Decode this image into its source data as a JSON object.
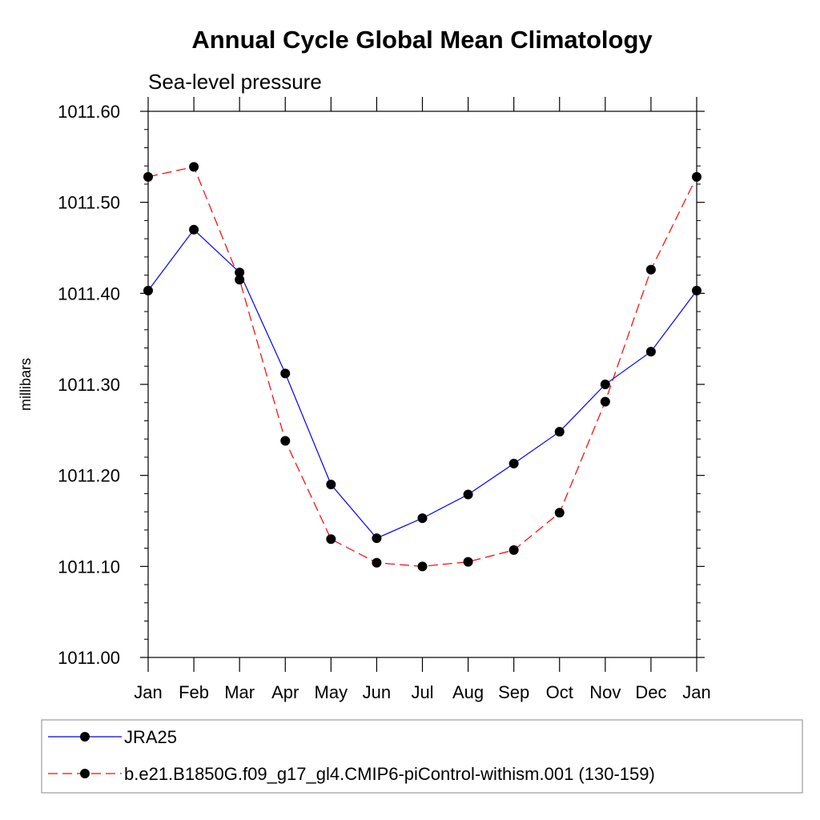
{
  "chart_data": {
    "type": "line",
    "title": "Annual Cycle Global Mean Climatology",
    "subtitle": "Sea-level pressure",
    "xlabel": "",
    "ylabel": "millibars",
    "categories": [
      "Jan",
      "Feb",
      "Mar",
      "Apr",
      "May",
      "Jun",
      "Jul",
      "Aug",
      "Sep",
      "Oct",
      "Nov",
      "Dec",
      "Jan"
    ],
    "ylim": [
      1011.0,
      1011.6
    ],
    "yticks": [
      1011.0,
      1011.1,
      1011.2,
      1011.3,
      1011.4,
      1011.5,
      1011.6
    ],
    "ytick_labels": [
      "1011.00",
      "1011.10",
      "1011.20",
      "1011.30",
      "1011.40",
      "1011.50",
      "1011.60"
    ],
    "grid": false,
    "legend_position": "bottom",
    "series": [
      {
        "name": "JRA25",
        "color": "#0000ff",
        "dash": "solid",
        "marker": "filled-circle",
        "values": [
          1011.403,
          1011.47,
          1011.423,
          1011.312,
          1011.19,
          1011.131,
          1011.153,
          1011.179,
          1011.213,
          1011.248,
          1011.3,
          1011.336,
          1011.403
        ]
      },
      {
        "name": "b.e21.B1850G.f09_g17_gl4.CMIP6-piControl-withism.001 (130-159)",
        "color": "#ff0000",
        "dash": "dashed",
        "marker": "filled-circle",
        "values": [
          1011.528,
          1011.539,
          1011.415,
          1011.238,
          1011.13,
          1011.104,
          1011.1,
          1011.105,
          1011.118,
          1011.159,
          1011.281,
          1011.426,
          1011.528
        ]
      }
    ]
  }
}
